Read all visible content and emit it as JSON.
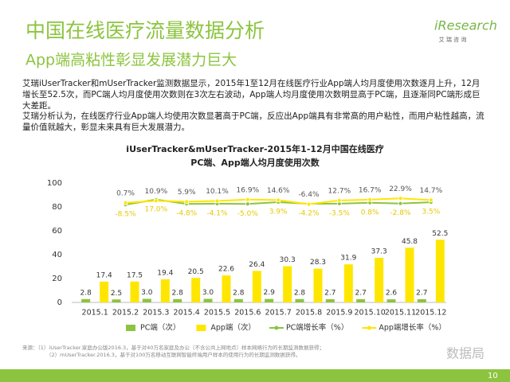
{
  "header": {
    "title": "中国在线医疗流量数据分析",
    "subtitle": "App端高粘性彰显发展潜力巨大"
  },
  "logo": {
    "name": "iResearch",
    "tagline": "艾 瑞 咨 询"
  },
  "paragraphs": [
    "艾瑞iUserTracker和mUserTracker监测数据显示，2015年1至12月在线医疗行业App端人均月度使用次数逐月上升，12月增长至52.5次，而PC端人均月度使用次数则在3次左右波动，App端人均月度使用次数明显高于PC端，且逐渐同PC端形成巨大差距。",
    "艾瑞分析认为，在线医疗行业App端人均使用次数显著高于PC端，反应出App端具有非常高的用户粘性，而用户粘性越高，流量价值就越大，彰显未来具有巨大发展潜力。"
  ],
  "chart_data": {
    "type": "bar",
    "title": "iUserTracker&mUserTracker-2015年1-12月中国在线医疗",
    "subtitle": "PC端、App端人均月度使用次数",
    "categories": [
      "2015.1",
      "2015.2",
      "2015.3",
      "2015.4",
      "2015.5",
      "2015.6",
      "2015.7",
      "2015.8",
      "2015.9",
      "2015.10",
      "2015.11",
      "2015.12"
    ],
    "ylim": [
      0,
      100
    ],
    "yticks": [
      0,
      20,
      40,
      60,
      80,
      100
    ],
    "y2lim": [
      -500,
      100
    ],
    "grid": false,
    "series": [
      {
        "name": "PC端（次）",
        "type": "bar",
        "color": "#8cc43f",
        "values": [
          2.8,
          2.5,
          3.0,
          2.8,
          3.0,
          2.8,
          2.9,
          2.8,
          2.7,
          2.7,
          2.6,
          2.7
        ],
        "value_labels": [
          "2.8",
          "2.5",
          "3.0",
          "2.8",
          "3.0",
          "2.8",
          "2.9",
          "2.8",
          "2.7",
          "2.7",
          "2.6",
          "2.7"
        ]
      },
      {
        "name": "App端（次）",
        "type": "bar",
        "color": "#ffe600",
        "values": [
          17.4,
          17.5,
          19.4,
          20.5,
          22.6,
          26.4,
          30.3,
          28.3,
          31.9,
          37.3,
          45.8,
          52.5
        ]
      },
      {
        "name": "PC端增长率（%）",
        "type": "line",
        "axis": "y2",
        "color": "#8cc43f",
        "label_color": "#e8c800",
        "values": [
          null,
          -8.5,
          17.0,
          -4.8,
          -4.1,
          -5.0,
          3.9,
          -4.2,
          -3.5,
          0.8,
          -2.8,
          3.5
        ],
        "value_labels": [
          null,
          "-8.5%",
          "17.0%",
          "-4.8%",
          "-4.1%",
          "-5.0%",
          "3.9%",
          "-4.2%",
          "-3.5%",
          "0.8%",
          "-2.8%",
          "3.5%"
        ]
      },
      {
        "name": "App端增长率（%）",
        "type": "line",
        "axis": "y2",
        "color": "#ffe600",
        "label_color": "#555555",
        "values": [
          null,
          0.7,
          10.9,
          5.9,
          10.1,
          16.9,
          14.6,
          -6.4,
          12.7,
          16.7,
          22.9,
          14.7
        ],
        "value_labels": [
          null,
          "0.7%",
          "10.9%",
          "5.9%",
          "10.1%",
          "16.9%",
          "14.6%",
          "-6.4%",
          "12.7%",
          "16.7%",
          "22.9%",
          "14.7%"
        ]
      }
    ]
  },
  "source": [
    "来源：（1）iUserTracker.家庭办公版2016.3，基于对40万名家庭及办公（不含公共上网地点）样本网络行为的长期监测数据获得；",
    "（2）mUserTracker.2016.3，基于对100万名移动互联网智能终端用户样本的使用行为的长期监测数据获得。"
  ],
  "watermark": "数据局",
  "page_number": "10"
}
